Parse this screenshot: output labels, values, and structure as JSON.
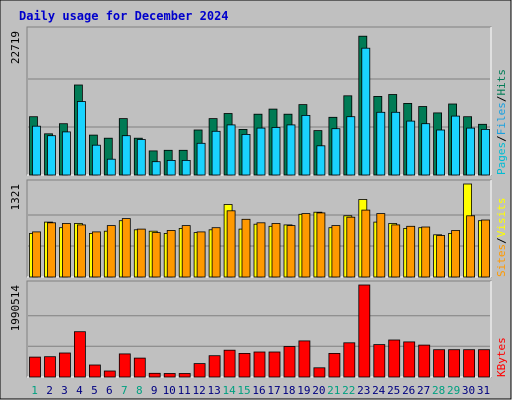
{
  "chart_data": {
    "type": "bar",
    "title": "Daily usage for December 2024",
    "categories": [
      "1",
      "2",
      "3",
      "4",
      "5",
      "6",
      "7",
      "8",
      "9",
      "10",
      "11",
      "12",
      "13",
      "14",
      "15",
      "16",
      "17",
      "18",
      "19",
      "20",
      "21",
      "22",
      "23",
      "24",
      "25",
      "26",
      "27",
      "28",
      "29",
      "30",
      "31"
    ],
    "weekend_days": [
      "1",
      "7",
      "8",
      "14",
      "15",
      "21",
      "22",
      "28",
      "29"
    ],
    "colors": {
      "hits": "#007b55",
      "files": "#19d3ff",
      "pages": "#00e0ff",
      "visits": "#ffff00",
      "sites": "#ff9900",
      "kbytes": "#ff0000",
      "weekend_label": "#00a080",
      "weekday_label": "#000080",
      "title": "#0000cc"
    },
    "panels": [
      {
        "id": "hits-files-pages",
        "ymax_label": "22719",
        "ymax": 22719,
        "legend": [
          "Pages",
          "/",
          "Files",
          "/",
          "Hits"
        ],
        "series": [
          {
            "name": "Hits",
            "values": [
              9200,
              6500,
              8100,
              14200,
              6300,
              5800,
              8900,
              5800,
              3800,
              3900,
              3900,
              7100,
              8900,
              9700,
              7200,
              9600,
              10400,
              9600,
              11100,
              7000,
              9100,
              12500,
              21900,
              12400,
              12700,
              11300,
              10800,
              9800,
              11200,
              9200,
              8000
            ]
          },
          {
            "name": "Files",
            "values": [
              7700,
              6200,
              6800,
              11600,
              4700,
              2500,
              6200,
              5600,
              2100,
              2300,
              2300,
              5000,
              6900,
              7900,
              6400,
              7400,
              7500,
              7900,
              9400,
              4600,
              7300,
              9200,
              20000,
              9900,
              9900,
              8500,
              8100,
              7100,
              9300,
              7400,
              7200
            ]
          }
        ]
      },
      {
        "id": "visits-sites",
        "ymax_label": "1321",
        "ymax": 1321,
        "legend": [
          "Sites",
          "/",
          "Visits"
        ],
        "series": [
          {
            "name": "Visits",
            "values": [
              620,
              780,
              700,
              760,
              620,
              650,
              800,
              670,
              650,
              620,
              690,
              630,
              670,
              1030,
              680,
              750,
              720,
              740,
              890,
              920,
              700,
              870,
              1101,
              780,
              760,
              690,
              700,
              600,
              620,
              1321,
              800
            ],
            "highlight_days": [
              "14",
              "24",
              "30"
            ]
          },
          {
            "name": "Sites",
            "values": [
              640,
              770,
              760,
              740,
              640,
              730,
              830,
              680,
              630,
              660,
              730,
              640,
              700,
              940,
              820,
              770,
              760,
              730,
              900,
              910,
              730,
              850,
              950,
              900,
              740,
              720,
              710,
              590,
              660,
              870,
              810
            ]
          }
        ]
      },
      {
        "id": "kbytes",
        "ymax_label": "1990514",
        "ymax": 1990514,
        "legend": [
          "KBytes"
        ],
        "series": [
          {
            "name": "KBytes",
            "values": [
              430000,
              440000,
              520000,
              980000,
              260000,
              130000,
              500000,
              410000,
              80000,
              75000,
              75000,
              290000,
              460000,
              580000,
              510000,
              540000,
              540000,
              660000,
              780000,
              200000,
              510000,
              740000,
              1990514,
              700000,
              800000,
              760000,
              690000,
              590000,
              590000,
              590000,
              590000
            ]
          }
        ]
      }
    ]
  }
}
